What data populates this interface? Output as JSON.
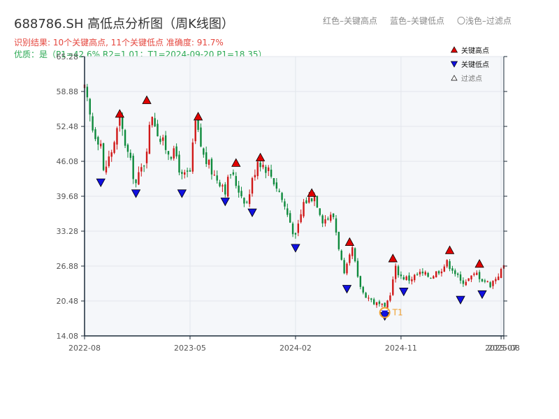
{
  "header": {
    "title": "688786.SH 高低点分析图（周K线图）",
    "subtitle": "识别结果: 10个关键高点, 11个关键低点  准确度: 91.7%",
    "quality": "优质：是（P1=42.6%  R2=1.01；T1=2024-09-20 P1=18.35）"
  },
  "top_legend": {
    "red": "红色–关键高点",
    "blue": "蓝色–关键低点",
    "light": "〇浅色–过滤点"
  },
  "colors": {
    "up": "#d01818",
    "down": "#0e8a3c",
    "high_marker": "#e00000",
    "low_marker": "#1010e0",
    "t1": "#f0a030",
    "plot_bg": "#f5f7fa",
    "grid": "#e2e6ec",
    "axis": "#1c2b3a"
  },
  "chart_data": {
    "type": "candlestick",
    "title": "688786.SH 高低点分析图（周K线图）",
    "xlabel": "",
    "ylabel": "",
    "ylim": [
      14.08,
      65.28
    ],
    "xlim": [
      "2022-08-05",
      "2025-07-25"
    ],
    "y_ticks": [
      "14.08",
      "20.48",
      "26.88",
      "33.28",
      "39.68",
      "46.08",
      "52.48",
      "58.88",
      "65.28"
    ],
    "x_ticks": [
      {
        "label": "2022-08",
        "date": "2022-08-05"
      },
      {
        "label": "2023-05",
        "date": "2023-05-05"
      },
      {
        "label": "2024-02",
        "date": "2024-02-02"
      },
      {
        "label": "2024-11",
        "date": "2024-11-01"
      },
      {
        "label": "2025-07",
        "date": "2025-07-18"
      },
      {
        "label": "2025-08",
        "date": "2025-07-25"
      }
    ],
    "legend": [
      {
        "name": "关键高点",
        "kind": "high"
      },
      {
        "name": "关键低点",
        "kind": "low"
      },
      {
        "name": "过滤点",
        "kind": "filtered"
      }
    ],
    "legend_position": "top-right",
    "anchors": [
      [
        "2022-08-05",
        59.0
      ],
      [
        "2022-08-26",
        52.0
      ],
      [
        "2022-09-16",
        49.5
      ],
      [
        "2022-09-23",
        44.0
      ],
      [
        "2022-10-14",
        48.0
      ],
      [
        "2022-11-04",
        53.5
      ],
      [
        "2022-11-25",
        47.5
      ],
      [
        "2022-12-16",
        42.0
      ],
      [
        "2023-01-06",
        46.0
      ],
      [
        "2023-01-27",
        55.0
      ],
      [
        "2023-02-17",
        50.0
      ],
      [
        "2023-03-10",
        48.0
      ],
      [
        "2023-03-31",
        47.0
      ],
      [
        "2023-04-14",
        43.0
      ],
      [
        "2023-05-05",
        44.0
      ],
      [
        "2023-05-19",
        53.0
      ],
      [
        "2023-06-09",
        47.0
      ],
      [
        "2023-07-07",
        43.5
      ],
      [
        "2023-07-28",
        42.0
      ],
      [
        "2023-08-04",
        41.0
      ],
      [
        "2023-08-18",
        44.0
      ],
      [
        "2023-09-15",
        40.0
      ],
      [
        "2023-09-29",
        38.5
      ],
      [
        "2023-10-27",
        46.5
      ],
      [
        "2023-11-24",
        44.5
      ],
      [
        "2023-12-22",
        40.5
      ],
      [
        "2024-01-19",
        35.0
      ],
      [
        "2024-02-02",
        32.0
      ],
      [
        "2024-02-23",
        38.5
      ],
      [
        "2024-03-22",
        40.0
      ],
      [
        "2024-04-12",
        35.5
      ],
      [
        "2024-05-10",
        36.0
      ],
      [
        "2024-06-07",
        25.0
      ],
      [
        "2024-06-28",
        30.0
      ],
      [
        "2024-07-12",
        24.5
      ],
      [
        "2024-07-26",
        22.0
      ],
      [
        "2024-08-23",
        20.2
      ],
      [
        "2024-09-13",
        19.5
      ],
      [
        "2024-09-20",
        19.0
      ],
      [
        "2024-10-04",
        22.0
      ],
      [
        "2024-10-18",
        26.5
      ],
      [
        "2024-11-01",
        25.0
      ],
      [
        "2024-11-22",
        24.5
      ],
      [
        "2024-12-20",
        25.5
      ],
      [
        "2025-01-17",
        25.0
      ],
      [
        "2025-02-14",
        26.5
      ],
      [
        "2025-02-28",
        27.5
      ],
      [
        "2025-03-14",
        26.5
      ],
      [
        "2025-04-04",
        24.0
      ],
      [
        "2025-04-25",
        24.5
      ],
      [
        "2025-05-16",
        25.5
      ],
      [
        "2025-05-30",
        24.5
      ],
      [
        "2025-06-20",
        23.5
      ],
      [
        "2025-07-18",
        26.0
      ],
      [
        "2025-07-25",
        27.0
      ]
    ],
    "key_highs": [
      {
        "date": "2022-11-04",
        "price": 53.5
      },
      {
        "date": "2023-01-13",
        "price": 56.0
      },
      {
        "date": "2023-05-26",
        "price": 53.0
      },
      {
        "date": "2023-09-01",
        "price": 44.5
      },
      {
        "date": "2023-11-03",
        "price": 45.5
      },
      {
        "date": "2024-03-15",
        "price": 39.0
      },
      {
        "date": "2024-06-21",
        "price": 30.0
      },
      {
        "date": "2024-10-11",
        "price": 27.0
      },
      {
        "date": "2025-03-07",
        "price": 28.5
      },
      {
        "date": "2025-05-23",
        "price": 26.0
      }
    ],
    "key_lows": [
      {
        "date": "2022-09-16",
        "price": 43.5
      },
      {
        "date": "2022-12-16",
        "price": 41.5
      },
      {
        "date": "2023-04-14",
        "price": 41.5
      },
      {
        "date": "2023-08-04",
        "price": 40.0
      },
      {
        "date": "2023-10-13",
        "price": 38.0
      },
      {
        "date": "2024-02-02",
        "price": 31.5
      },
      {
        "date": "2024-06-14",
        "price": 24.0
      },
      {
        "date": "2024-09-20",
        "price": 19.0
      },
      {
        "date": "2024-11-08",
        "price": 23.5
      },
      {
        "date": "2025-04-04",
        "price": 22.0
      },
      {
        "date": "2025-05-30",
        "price": 23.0
      }
    ],
    "t1": {
      "label": "T1",
      "date": "2024-09-20",
      "price": 18.35
    }
  }
}
